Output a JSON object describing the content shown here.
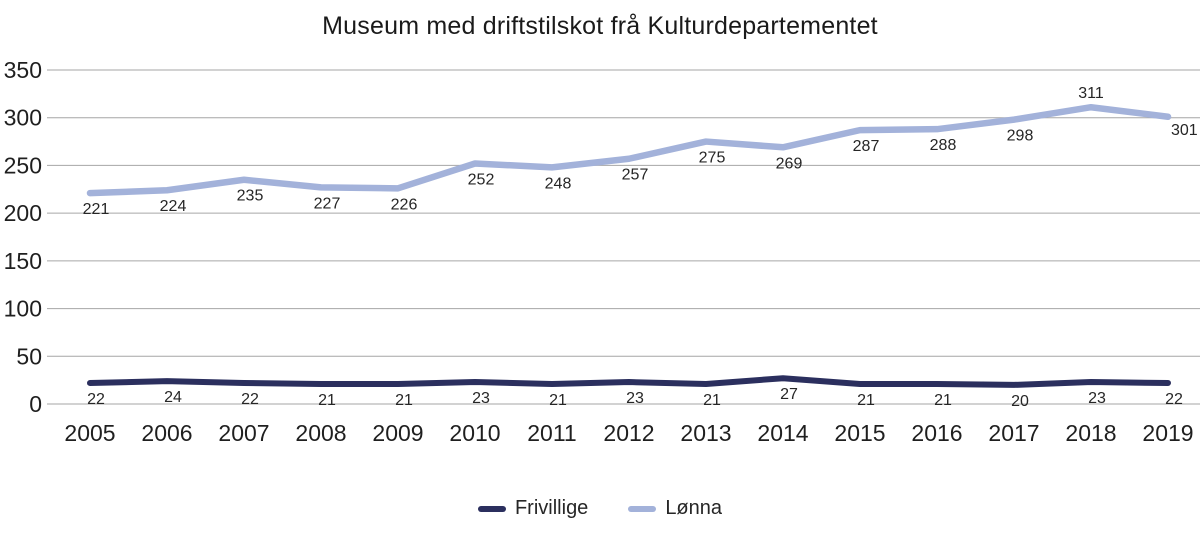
{
  "chart_data": {
    "type": "line",
    "title": "Museum med driftstilskot frå Kulturdepartementet",
    "categories": [
      "2005",
      "2006",
      "2007",
      "2008",
      "2009",
      "2010",
      "2011",
      "2012",
      "2013",
      "2014",
      "2015",
      "2016",
      "2017",
      "2018",
      "2019"
    ],
    "series": [
      {
        "name": "Frivillige",
        "color": "#2b2f5e",
        "stroke_width": 6,
        "values": [
          22,
          24,
          22,
          21,
          21,
          23,
          21,
          23,
          21,
          27,
          21,
          21,
          20,
          23,
          22
        ],
        "label_position": "below",
        "label_overrides": {}
      },
      {
        "name": "Lønna",
        "color": "#a3b2da",
        "stroke_width": 6.5,
        "values": [
          221,
          224,
          235,
          227,
          226,
          252,
          248,
          257,
          275,
          269,
          287,
          288,
          298,
          311,
          301
        ],
        "label_position": "below",
        "label_overrides": {
          "13": "above",
          "14": "right"
        }
      }
    ],
    "y_ticks": [
      0,
      50,
      100,
      150,
      200,
      250,
      300,
      350
    ],
    "ylim": [
      0,
      350
    ],
    "xlabel": "",
    "ylabel": "",
    "grid": "horizontal",
    "legend_position": "bottom",
    "colors": {
      "grid": "#a6a6a6",
      "axis_text": "#1f1f1f",
      "label_text": "#262626",
      "background": "#ffffff"
    }
  }
}
